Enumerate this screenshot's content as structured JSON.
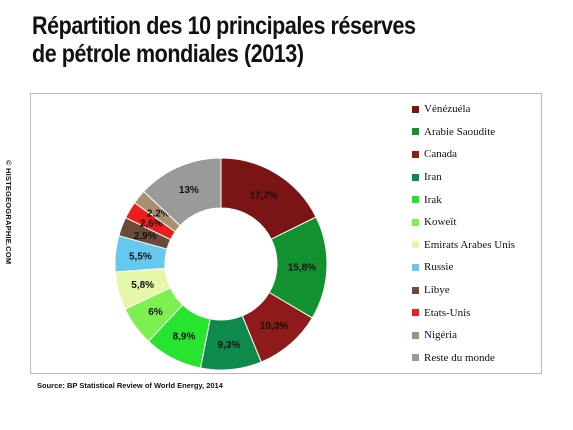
{
  "title": {
    "line1": "Répartition des 10 principales réserves",
    "line2": "de pétrole mondiales (2013)"
  },
  "copyright": "© HISTEGEOGRAPHIE.COM",
  "source": "Source: BP Statistical Review of World Energy, 2014",
  "chart_data": {
    "type": "pie",
    "donut": true,
    "legend_position": "right",
    "title": "Répartition des 10 principales réserves de pétrole mondiales (2013)",
    "categories": [
      "Vénézuéla",
      "Arabie Saoudite",
      "Canada",
      "Iran",
      "Irak",
      "Koweït",
      "Emirats Arabes Unis",
      "Russie",
      "Libye",
      "Etats-Unis",
      "Nigéria",
      "Reste du monde"
    ],
    "values": [
      17.7,
      15.8,
      10.3,
      9.3,
      8.9,
      6,
      5.8,
      5.5,
      2.9,
      2.6,
      2.2,
      13
    ],
    "labels": [
      "17,7%",
      "15,8%",
      "10,3%",
      "9,3%",
      "8,9%",
      "6%",
      "5,8%",
      "5,5%",
      "2,9%",
      "2,6%",
      "2,2%",
      "13%"
    ],
    "colors": [
      "#7b1414",
      "#12922f",
      "#8f1a1a",
      "#0e8a4c",
      "#27e42f",
      "#7cf04e",
      "#e6f8a8",
      "#65c8ee",
      "#6b4b38",
      "#ee1d1d",
      "#a89070",
      "#9a9a9a"
    ]
  }
}
